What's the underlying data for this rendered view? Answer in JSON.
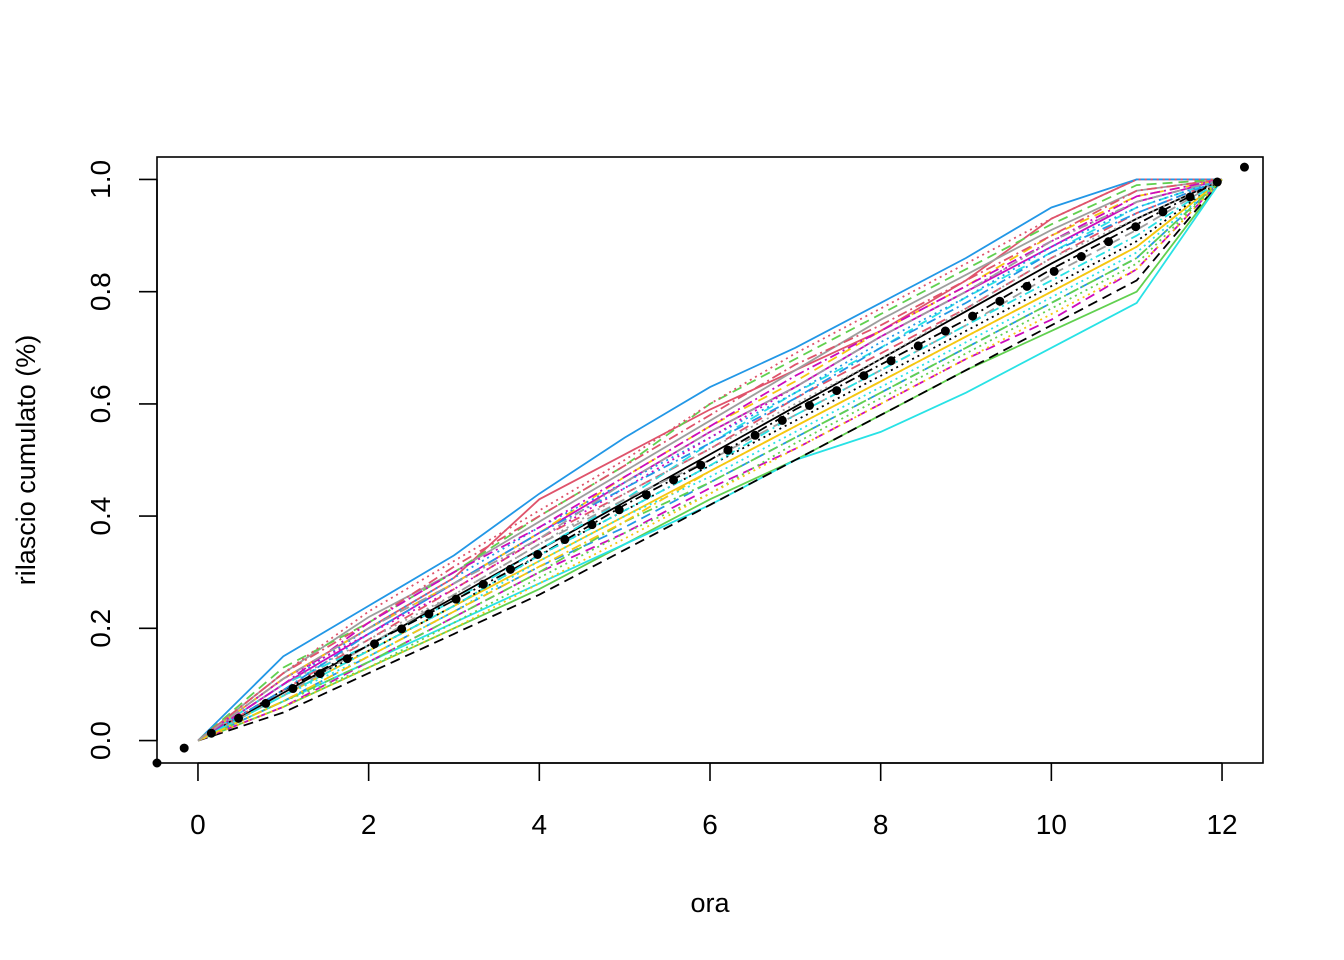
{
  "chart_data": {
    "type": "line",
    "title": "",
    "xlabel": "ora",
    "ylabel": "rilascio cumulato (%)",
    "xlim": [
      -0.48,
      12.48
    ],
    "ylim": [
      -0.04,
      1.04
    ],
    "x_ticks": [
      0,
      2,
      4,
      6,
      8,
      10,
      12
    ],
    "x_tick_labels": [
      "0",
      "2",
      "4",
      "6",
      "8",
      "10",
      "12"
    ],
    "y_ticks": [
      0,
      0.2,
      0.4,
      0.6,
      0.8,
      1.0
    ],
    "y_tick_labels": [
      "0.0",
      "0.2",
      "0.4",
      "0.6",
      "0.8",
      "1.0"
    ],
    "grid": false,
    "legend": "none",
    "series_style": "many thin overlapping lines (solid, dashed, dotted, dash-dot) in a cycling palette",
    "palette": [
      "#000000",
      "#DF536B",
      "#61D04F",
      "#2297E6",
      "#28E2E5",
      "#CD0BBC",
      "#F5C710",
      "#9E9E9E"
    ],
    "series_x": [
      0,
      1,
      2,
      3,
      4,
      5,
      6,
      7,
      8,
      9,
      10,
      11,
      12
    ],
    "series": [
      {
        "values": [
          0,
          0.085,
          0.17,
          0.255,
          0.34,
          0.425,
          0.51,
          0.595,
          0.68,
          0.765,
          0.85,
          0.93,
          1
        ]
      },
      {
        "values": [
          0,
          0.11,
          0.2,
          0.29,
          0.43,
          0.51,
          0.59,
          0.66,
          0.73,
          0.82,
          0.93,
          1,
          1
        ]
      },
      {
        "values": [
          0,
          0.06,
          0.13,
          0.2,
          0.27,
          0.35,
          0.43,
          0.5,
          0.58,
          0.66,
          0.73,
          0.8,
          1
        ]
      },
      {
        "values": [
          0,
          0.15,
          0.24,
          0.33,
          0.44,
          0.54,
          0.63,
          0.7,
          0.78,
          0.86,
          0.95,
          1,
          1
        ]
      },
      {
        "values": [
          0,
          0.07,
          0.14,
          0.21,
          0.28,
          0.35,
          0.42,
          0.5,
          0.55,
          0.62,
          0.7,
          0.78,
          1
        ]
      },
      {
        "values": [
          0,
          0.1,
          0.19,
          0.28,
          0.37,
          0.46,
          0.55,
          0.63,
          0.72,
          0.8,
          0.88,
          0.96,
          1
        ]
      },
      {
        "values": [
          0,
          0.08,
          0.16,
          0.24,
          0.32,
          0.4,
          0.48,
          0.56,
          0.64,
          0.72,
          0.8,
          0.88,
          1
        ]
      },
      {
        "values": [
          0,
          0.12,
          0.22,
          0.3,
          0.39,
          0.48,
          0.57,
          0.66,
          0.75,
          0.83,
          0.91,
          0.98,
          1
        ]
      },
      {
        "values": [
          0,
          0.05,
          0.12,
          0.19,
          0.26,
          0.34,
          0.42,
          0.5,
          0.58,
          0.66,
          0.74,
          0.82,
          1
        ]
      },
      {
        "values": [
          0,
          0.09,
          0.18,
          0.27,
          0.36,
          0.44,
          0.52,
          0.61,
          0.69,
          0.77,
          0.86,
          0.94,
          1
        ]
      },
      {
        "values": [
          0,
          0.13,
          0.21,
          0.3,
          0.4,
          0.49,
          0.6,
          0.68,
          0.76,
          0.84,
          0.92,
          0.99,
          1
        ]
      },
      {
        "values": [
          0,
          0.07,
          0.15,
          0.23,
          0.31,
          0.38,
          0.46,
          0.54,
          0.62,
          0.7,
          0.78,
          0.86,
          1
        ]
      },
      {
        "values": [
          0,
          0.1,
          0.17,
          0.25,
          0.34,
          0.43,
          0.53,
          0.62,
          0.7,
          0.79,
          0.87,
          0.95,
          1
        ]
      },
      {
        "values": [
          0,
          0.06,
          0.14,
          0.22,
          0.3,
          0.37,
          0.45,
          0.52,
          0.6,
          0.68,
          0.75,
          0.84,
          1
        ]
      },
      {
        "values": [
          0,
          0.11,
          0.2,
          0.28,
          0.37,
          0.47,
          0.56,
          0.64,
          0.73,
          0.81,
          0.9,
          0.97,
          1
        ]
      },
      {
        "values": [
          0,
          0.08,
          0.17,
          0.26,
          0.35,
          0.43,
          0.5,
          0.58,
          0.66,
          0.74,
          0.83,
          0.91,
          1
        ]
      },
      {
        "values": [
          0,
          0.09,
          0.16,
          0.24,
          0.33,
          0.41,
          0.49,
          0.57,
          0.65,
          0.73,
          0.81,
          0.89,
          1
        ]
      },
      {
        "values": [
          0,
          0.12,
          0.23,
          0.32,
          0.41,
          0.5,
          0.6,
          0.69,
          0.77,
          0.85,
          0.93,
          1,
          1
        ]
      },
      {
        "values": [
          0,
          0.07,
          0.13,
          0.21,
          0.29,
          0.37,
          0.44,
          0.53,
          0.61,
          0.69,
          0.77,
          0.85,
          1
        ]
      },
      {
        "values": [
          0,
          0.1,
          0.2,
          0.29,
          0.38,
          0.46,
          0.54,
          0.62,
          0.71,
          0.79,
          0.88,
          0.95,
          1
        ]
      },
      {
        "values": [
          0,
          0.08,
          0.15,
          0.23,
          0.32,
          0.4,
          0.47,
          0.55,
          0.63,
          0.71,
          0.79,
          0.87,
          1
        ]
      },
      {
        "values": [
          0,
          0.11,
          0.19,
          0.27,
          0.36,
          0.45,
          0.54,
          0.63,
          0.72,
          0.8,
          0.89,
          0.96,
          1
        ]
      },
      {
        "values": [
          0,
          0.06,
          0.13,
          0.2,
          0.28,
          0.36,
          0.44,
          0.52,
          0.6,
          0.68,
          0.76,
          0.84,
          1
        ]
      },
      {
        "values": [
          0,
          0.1,
          0.18,
          0.26,
          0.35,
          0.44,
          0.52,
          0.6,
          0.68,
          0.77,
          0.86,
          0.93,
          1
        ]
      },
      {
        "values": [
          0,
          0.09,
          0.17,
          0.25,
          0.33,
          0.42,
          0.5,
          0.59,
          0.67,
          0.75,
          0.84,
          0.92,
          1
        ]
      },
      {
        "values": [
          0,
          0.12,
          0.21,
          0.31,
          0.4,
          0.49,
          0.58,
          0.67,
          0.74,
          0.82,
          0.9,
          0.98,
          1
        ]
      },
      {
        "values": [
          0,
          0.07,
          0.14,
          0.22,
          0.3,
          0.39,
          0.46,
          0.54,
          0.62,
          0.7,
          0.78,
          0.86,
          1
        ]
      },
      {
        "values": [
          0,
          0.09,
          0.19,
          0.28,
          0.37,
          0.45,
          0.53,
          0.61,
          0.7,
          0.78,
          0.87,
          0.94,
          1
        ]
      },
      {
        "values": [
          0,
          0.08,
          0.16,
          0.24,
          0.33,
          0.41,
          0.49,
          0.58,
          0.66,
          0.74,
          0.82,
          0.9,
          1
        ]
      },
      {
        "values": [
          0,
          0.1,
          0.21,
          0.3,
          0.38,
          0.47,
          0.56,
          0.65,
          0.73,
          0.81,
          0.89,
          0.97,
          1
        ]
      },
      {
        "values": [
          0,
          0.07,
          0.15,
          0.23,
          0.31,
          0.39,
          0.48,
          0.56,
          0.64,
          0.72,
          0.8,
          0.88,
          1
        ]
      },
      {
        "values": [
          0,
          0.11,
          0.2,
          0.28,
          0.36,
          0.46,
          0.55,
          0.63,
          0.72,
          0.8,
          0.89,
          0.96,
          1
        ]
      }
    ],
    "mean_series": {
      "style": "thick black dotted line",
      "x": [
        -0.48,
        12.48
      ],
      "y": [
        -0.04,
        1.04
      ]
    }
  }
}
